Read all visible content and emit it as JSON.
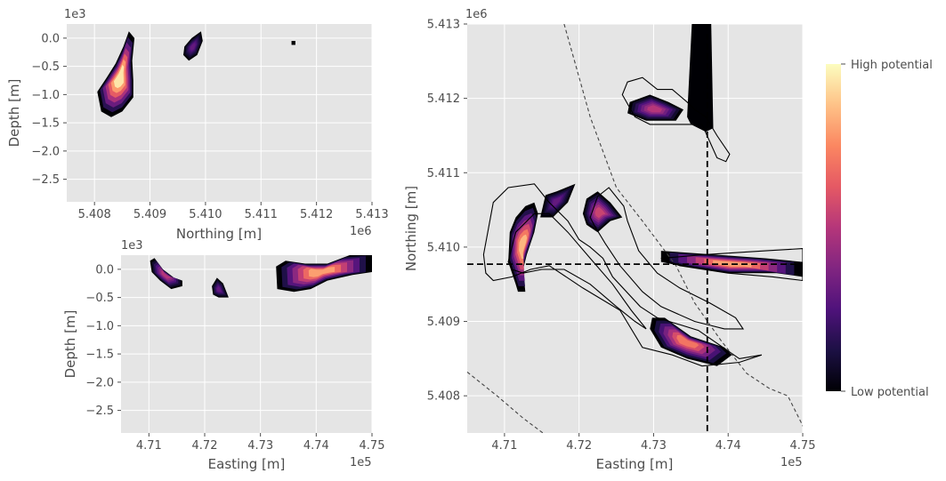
{
  "chart_data": [
    {
      "id": "section_north",
      "type": "heatmap",
      "xlabel": "Northing [m]",
      "ylabel": "Depth [m]",
      "x_offset_label": "1e6",
      "y_offset_label": "1e3",
      "xlim": [
        5.4075,
        5.413
      ],
      "ylim": [
        -2.9,
        0.25
      ],
      "x_ticks": [
        "5.408",
        "5.409",
        "5.410",
        "5.411",
        "5.412",
        "5.413"
      ],
      "x_tick_values": [
        5.408,
        5.409,
        5.41,
        5.411,
        5.412,
        5.413
      ],
      "y_ticks": [
        "0.0",
        "−0.5",
        "−1.0",
        "−1.5",
        "−2.0",
        "−2.5"
      ],
      "y_tick_values": [
        0.0,
        -0.5,
        -1.0,
        -1.5,
        -2.0,
        -2.5
      ],
      "grid": true,
      "bodies": [
        {
          "points": [
            [
              5.40812,
              -1.3
            ],
            [
              5.40805,
              -0.95
            ],
            [
              5.40822,
              -0.7
            ],
            [
              5.40838,
              -0.45
            ],
            [
              5.40852,
              -0.15
            ],
            [
              5.40862,
              0.12
            ],
            [
              5.40872,
              0.0
            ],
            [
              5.40868,
              -0.4
            ],
            [
              5.4087,
              -0.75
            ],
            [
              5.4087,
              -1.05
            ],
            [
              5.4085,
              -1.3
            ],
            [
              5.4083,
              -1.4
            ]
          ],
          "peak": 0.95
        },
        {
          "points": [
            [
              5.40962,
              -0.15
            ],
            [
              5.40975,
              0.0
            ],
            [
              5.40992,
              0.12
            ],
            [
              5.40995,
              -0.05
            ],
            [
              5.40985,
              -0.3
            ],
            [
              5.4097,
              -0.4
            ],
            [
              5.4096,
              -0.3
            ]
          ],
          "peak": 0.3
        },
        {
          "points": [
            [
              5.41155,
              -0.05
            ],
            [
              5.41162,
              -0.05
            ],
            [
              5.41162,
              -0.12
            ],
            [
              5.41155,
              -0.12
            ]
          ],
          "peak": 0.0
        }
      ]
    },
    {
      "id": "section_east",
      "type": "heatmap",
      "xlabel": "Easting [m]",
      "ylabel": "Depth [m]",
      "x_offset_label": "1e5",
      "y_offset_label": "1e3",
      "xlim": [
        4.705,
        4.75
      ],
      "ylim": [
        -2.9,
        0.25
      ],
      "x_ticks": [
        "4.71",
        "4.72",
        "4.73",
        "4.74",
        "4.75"
      ],
      "x_tick_values": [
        4.71,
        4.72,
        4.73,
        4.74,
        4.75
      ],
      "y_ticks": [
        "0.0",
        "−0.5",
        "−1.0",
        "−1.5",
        "−2.0",
        "−2.5"
      ],
      "y_tick_values": [
        0.0,
        -0.5,
        -1.0,
        -1.5,
        -2.0,
        -2.5
      ],
      "grid": true,
      "bodies": [
        {
          "points": [
            [
              4.7102,
              0.15
            ],
            [
              4.711,
              0.2
            ],
            [
              4.7125,
              0.0
            ],
            [
              4.7145,
              -0.15
            ],
            [
              4.716,
              -0.2
            ],
            [
              4.716,
              -0.3
            ],
            [
              4.714,
              -0.35
            ],
            [
              4.712,
              -0.2
            ],
            [
              4.7105,
              -0.05
            ]
          ],
          "peak": 0.5
        },
        {
          "points": [
            [
              4.7213,
              -0.3
            ],
            [
              4.7222,
              -0.15
            ],
            [
              4.7233,
              -0.25
            ],
            [
              4.7243,
              -0.5
            ],
            [
              4.7225,
              -0.5
            ],
            [
              4.7215,
              -0.45
            ]
          ],
          "peak": 0.3
        },
        {
          "points": [
            [
              4.733,
              -0.35
            ],
            [
              4.7328,
              0.05
            ],
            [
              4.7345,
              0.15
            ],
            [
              4.738,
              0.1
            ],
            [
              4.742,
              0.1
            ],
            [
              4.746,
              0.25
            ],
            [
              4.75,
              0.28
            ],
            [
              4.75,
              -0.05
            ],
            [
              4.7465,
              -0.1
            ],
            [
              4.742,
              -0.2
            ],
            [
              4.739,
              -0.35
            ],
            [
              4.736,
              -0.4
            ]
          ],
          "peak": 0.8
        }
      ]
    },
    {
      "id": "plan_view",
      "type": "heatmap",
      "xlabel": "Easting [m]",
      "ylabel": "Northing [m]",
      "x_offset_label": "1e5",
      "y_offset_label": "1e6",
      "xlim": [
        4.705,
        4.75
      ],
      "ylim": [
        5.4075,
        5.413
      ],
      "x_ticks": [
        "4.71",
        "4.72",
        "4.73",
        "4.74",
        "4.75"
      ],
      "x_tick_values": [
        4.71,
        4.72,
        4.73,
        4.74,
        4.75
      ],
      "y_ticks": [
        "5.408",
        "5.409",
        "5.410",
        "5.411",
        "5.412",
        "5.413"
      ],
      "y_tick_values": [
        5.408,
        5.409,
        5.41,
        5.411,
        5.412,
        5.413
      ],
      "grid": true,
      "section_lines": {
        "easting": 4.7372,
        "northing": 5.40977
      },
      "bodies": [
        {
          "points": [
            [
              4.7268,
              5.41195
            ],
            [
              4.7295,
              5.41205
            ],
            [
              4.732,
              5.41195
            ],
            [
              4.734,
              5.41185
            ],
            [
              4.733,
              5.4117
            ],
            [
              4.729,
              5.4117
            ],
            [
              4.7265,
              5.4118
            ]
          ],
          "peak": 0.5
        },
        {
          "points": [
            [
              4.7345,
              5.41175
            ],
            [
              4.737,
              5.4167
            ],
            [
              4.738,
              5.4116
            ],
            [
              4.737,
              5.41155
            ],
            [
              4.735,
              5.41165
            ]
          ],
          "peak": 0.0
        },
        {
          "points": [
            [
              4.7115,
              5.4095
            ],
            [
              4.7105,
              5.4098
            ],
            [
              4.7107,
              5.4102
            ],
            [
              4.7115,
              5.4104
            ],
            [
              4.7128,
              5.41055
            ],
            [
              4.714,
              5.4106
            ],
            [
              4.7145,
              5.41045
            ],
            [
              4.714,
              5.4102
            ],
            [
              4.713,
              5.4099
            ],
            [
              4.7125,
              5.4097
            ],
            [
              4.7128,
              5.4094
            ],
            [
              4.7118,
              5.4094
            ]
          ],
          "peak": 0.85
        },
        {
          "points": [
            [
              4.7148,
              5.4104
            ],
            [
              4.7155,
              5.4107
            ],
            [
              4.717,
              5.41075
            ],
            [
              4.7195,
              5.41085
            ],
            [
              4.7185,
              5.4106
            ],
            [
              4.7165,
              5.4104
            ]
          ],
          "peak": 0.3
        },
        {
          "points": [
            [
              4.7205,
              5.41045
            ],
            [
              4.721,
              5.41065
            ],
            [
              4.7225,
              5.41075
            ],
            [
              4.7242,
              5.4106
            ],
            [
              4.7258,
              5.4104
            ],
            [
              4.7242,
              5.41035
            ],
            [
              4.7225,
              5.4102
            ],
            [
              4.721,
              5.4103
            ]
          ],
          "peak": 0.55
        },
        {
          "points": [
            [
              4.731,
              5.40995
            ],
            [
              4.738,
              5.4099
            ],
            [
              4.745,
              5.40985
            ],
            [
              4.75,
              5.4098
            ],
            [
              4.75,
              5.4096
            ],
            [
              4.7465,
              5.40965
            ],
            [
              4.74,
              5.40965
            ],
            [
              4.7335,
              5.40975
            ],
            [
              4.731,
              5.4098
            ]
          ],
          "peak": 0.8
        },
        {
          "points": [
            [
              4.7295,
              5.4089
            ],
            [
              4.7298,
              5.40905
            ],
            [
              4.7315,
              5.40905
            ],
            [
              4.735,
              5.4088
            ],
            [
              4.7395,
              5.40865
            ],
            [
              4.7405,
              5.40855
            ],
            [
              4.7385,
              5.4084
            ],
            [
              4.7345,
              5.4085
            ],
            [
              4.731,
              5.40865
            ]
          ],
          "peak": 0.7
        }
      ],
      "outlines": [
        {
          "points": [
            [
              4.7265,
              5.41222
            ],
            [
              4.7285,
              5.41228
            ],
            [
              4.7305,
              5.41212
            ],
            [
              4.7325,
              5.41212
            ],
            [
              4.7345,
              5.41195
            ],
            [
              4.7355,
              5.41185
            ],
            [
              4.737,
              5.41175
            ],
            [
              4.7385,
              5.4115
            ],
            [
              4.7402,
              5.41125
            ],
            [
              4.7397,
              5.41115
            ],
            [
              4.7385,
              5.4112
            ],
            [
              4.7365,
              5.41165
            ],
            [
              4.733,
              5.41165
            ],
            [
              4.7295,
              5.41165
            ],
            [
              4.7275,
              5.41175
            ],
            [
              4.7258,
              5.41205
            ]
          ]
        },
        {
          "points": [
            [
              4.7072,
              5.4099
            ],
            [
              4.7085,
              5.4106
            ],
            [
              4.7105,
              5.4108
            ],
            [
              4.714,
              5.41085
            ],
            [
              4.716,
              5.4106
            ],
            [
              4.7185,
              5.41035
            ],
            [
              4.72,
              5.4101
            ],
            [
              4.7215,
              5.41
            ],
            [
              4.7232,
              5.40985
            ],
            [
              4.7245,
              5.4096
            ],
            [
              4.7282,
              5.4092
            ],
            [
              4.7305,
              5.40905
            ],
            [
              4.736,
              5.40888
            ],
            [
              4.7415,
              5.4085
            ],
            [
              4.7445,
              5.40855
            ],
            [
              4.7415,
              5.40845
            ],
            [
              4.7365,
              5.4084
            ],
            [
              4.7325,
              5.40855
            ],
            [
              4.7285,
              5.40865
            ],
            [
              4.7255,
              5.40915
            ],
            [
              4.7205,
              5.40945
            ],
            [
              4.716,
              5.40975
            ],
            [
              4.7135,
              5.4097
            ],
            [
              4.711,
              5.4096
            ],
            [
              4.7085,
              5.40955
            ],
            [
              4.7075,
              5.40965
            ]
          ]
        },
        {
          "points": [
            [
              4.7105,
              5.4098
            ],
            [
              4.7115,
              5.4102
            ],
            [
              4.714,
              5.41045
            ],
            [
              4.716,
              5.41045
            ],
            [
              4.7185,
              5.4102
            ],
            [
              4.7215,
              5.40985
            ],
            [
              4.7245,
              5.4095
            ],
            [
              4.727,
              5.40915
            ],
            [
              4.729,
              5.4089
            ],
            [
              4.7275,
              5.409
            ],
            [
              4.725,
              5.4092
            ],
            [
              4.7215,
              5.4095
            ],
            [
              4.718,
              5.4097
            ],
            [
              4.715,
              5.4097
            ],
            [
              4.7125,
              5.40965
            ],
            [
              4.711,
              5.4097
            ]
          ]
        },
        {
          "points": [
            [
              4.7215,
              5.4104
            ],
            [
              4.7225,
              5.41068
            ],
            [
              4.724,
              5.4108
            ],
            [
              4.726,
              5.41055
            ],
            [
              4.7265,
              5.41035
            ],
            [
              4.728,
              5.40995
            ],
            [
              4.7305,
              5.40965
            ],
            [
              4.7335,
              5.40945
            ],
            [
              4.7375,
              5.40925
            ],
            [
              4.741,
              5.40905
            ],
            [
              4.742,
              5.4089
            ],
            [
              4.7395,
              5.4089
            ],
            [
              4.7355,
              5.409
            ],
            [
              4.731,
              5.4092
            ],
            [
              4.7285,
              5.4094
            ],
            [
              4.7255,
              5.40975
            ],
            [
              4.7235,
              5.41005
            ],
            [
              4.722,
              5.4103
            ]
          ]
        },
        {
          "points": [
            [
              4.731,
              5.40985
            ],
            [
              4.737,
              5.4099
            ],
            [
              4.745,
              5.40995
            ],
            [
              4.75,
              5.40998
            ],
            [
              4.75,
              5.40955
            ],
            [
              4.746,
              5.4096
            ],
            [
              4.74,
              5.40965
            ],
            [
              4.7335,
              5.40975
            ]
          ]
        }
      ],
      "dashed_boundaries": [
        {
          "points": [
            [
              4.718,
              5.413
            ],
            [
              4.7215,
              5.41175
            ],
            [
              4.725,
              5.4108
            ],
            [
              4.7285,
              5.41035
            ],
            [
              4.733,
              5.40975
            ],
            [
              4.7355,
              5.40925
            ],
            [
              4.739,
              5.40875
            ],
            [
              4.7425,
              5.4083
            ],
            [
              4.7455,
              5.4081
            ],
            [
              4.748,
              5.408
            ],
            [
              4.7505,
              5.4075
            ]
          ]
        },
        {
          "points": [
            [
              4.705,
              5.40832
            ],
            [
              4.709,
              5.408
            ],
            [
              4.7125,
              5.4077
            ],
            [
              4.7165,
              5.4074
            ]
          ]
        }
      ]
    }
  ],
  "colorbar": {
    "high_label": "High potential",
    "low_label": "Low potential",
    "colormap": "magma",
    "stops": [
      "#000004",
      "#1c1044",
      "#4f127b",
      "#812581",
      "#b5367a",
      "#e55964",
      "#fb8761",
      "#fec287",
      "#fcfdbf"
    ]
  }
}
